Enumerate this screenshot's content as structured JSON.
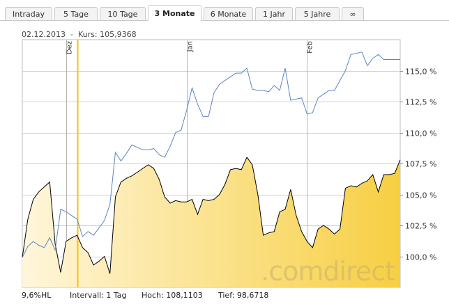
{
  "tabs": [
    {
      "label": "Intraday",
      "active": false
    },
    {
      "label": "5 Tage",
      "active": false
    },
    {
      "label": "10 Tage",
      "active": false
    },
    {
      "label": "3 Monate",
      "active": true
    },
    {
      "label": "6 Monate",
      "active": false
    },
    {
      "label": "1 Jahr",
      "active": false
    },
    {
      "label": "5 Jahre",
      "active": false
    },
    {
      "label": "∞",
      "active": false
    }
  ],
  "info": {
    "date": "02.12.2013",
    "separator": "-",
    "kurs_label": "Kurs:",
    "kurs_value": "105,9368"
  },
  "footer": {
    "hl": "9,6%HL",
    "intervall": "Intervall: 1 Tag",
    "hoch": "Hoch: 108,1103",
    "tief": "Tief: 98,6718"
  },
  "watermark": ".comdirect",
  "colors": {
    "price_line": "#000000",
    "comparison_line": "#5b84c4",
    "area_fill_start": "#fff6dc",
    "area_fill_end": "#f7cf42",
    "cursor_line": "#f5c400",
    "grid": "#cfcfcf",
    "frame": "#bbbbbb"
  },
  "chart_data": {
    "type": "area",
    "ylim": [
      97.5,
      117.5
    ],
    "y_ticks": [
      {
        "value": 100,
        "label": "100,0 %"
      },
      {
        "value": 102.5,
        "label": "102,5 %"
      },
      {
        "value": 105,
        "label": "105,0 %"
      },
      {
        "value": 107.5,
        "label": "107,5 %"
      },
      {
        "value": 110,
        "label": "110,0 %"
      },
      {
        "value": 112.5,
        "label": "112,5 %"
      },
      {
        "value": 115,
        "label": "115,0 %"
      }
    ],
    "x_ticks": [
      {
        "label": "Dez",
        "index": 8
      },
      {
        "label": "Jan",
        "index": 30
      },
      {
        "label": "Feb",
        "index": 52
      }
    ],
    "cursor_index": 10,
    "series": [
      {
        "style": "area",
        "values": [
          99.9,
          103.0,
          104.6,
          105.2,
          105.6,
          106.0,
          101.0,
          98.7,
          101.2,
          101.5,
          101.7,
          100.7,
          100.3,
          99.3,
          99.6,
          100.0,
          98.6,
          104.8,
          106.0,
          106.3,
          106.5,
          106.8,
          107.1,
          107.4,
          107.1,
          106.2,
          104.8,
          104.3,
          104.5,
          104.4,
          104.4,
          104.6,
          103.4,
          104.6,
          104.5,
          104.6,
          105.0,
          105.8,
          107.0,
          107.1,
          107.0,
          108.0,
          107.4,
          105.0,
          101.7,
          101.9,
          102.0,
          103.6,
          103.8,
          105.4,
          103.3,
          102.0,
          101.2,
          100.7,
          102.2,
          102.5,
          102.2,
          101.8,
          102.2,
          105.5,
          105.7,
          105.6,
          105.9,
          106.1,
          106.6,
          105.2,
          106.6,
          106.6,
          106.7,
          107.8
        ]
      },
      {
        "style": "line",
        "values": [
          99.9,
          100.8,
          101.2,
          100.9,
          100.7,
          101.5,
          100.5,
          103.8,
          103.6,
          103.3,
          103.0,
          101.6,
          102.0,
          101.7,
          102.3,
          102.9,
          104.2,
          108.4,
          107.7,
          108.3,
          109.0,
          108.8,
          108.6,
          108.6,
          108.7,
          108.2,
          108.0,
          108.9,
          110.0,
          110.2,
          111.8,
          113.6,
          112.3,
          111.3,
          111.3,
          113.2,
          113.9,
          114.2,
          114.5,
          114.8,
          114.8,
          115.2,
          113.5,
          113.4,
          113.4,
          113.3,
          113.8,
          113.4,
          115.2,
          112.6,
          112.7,
          112.8,
          111.5,
          111.6,
          112.8,
          113.1,
          113.4,
          113.4,
          114.2,
          115.0,
          116.3,
          116.4,
          116.5,
          115.4,
          116.0,
          116.3,
          115.9,
          115.9,
          115.9,
          115.9
        ]
      }
    ]
  }
}
